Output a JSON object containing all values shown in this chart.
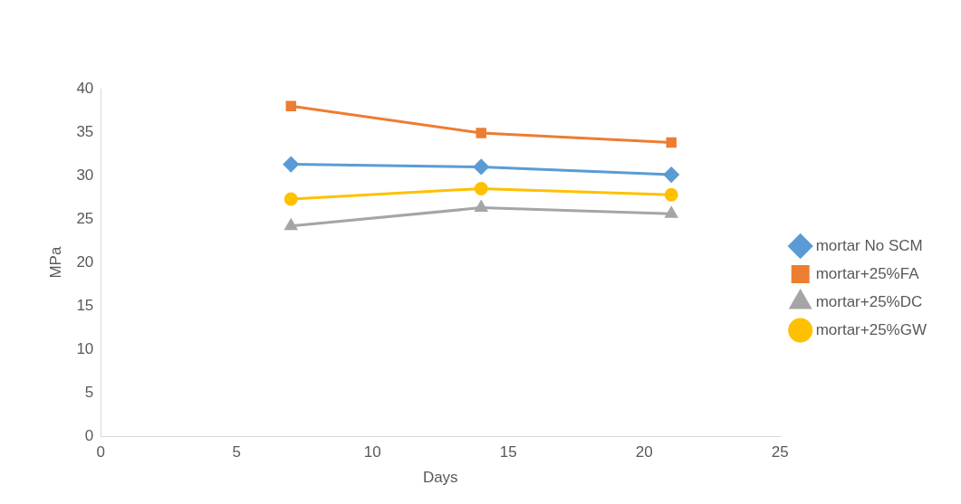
{
  "chart_data": {
    "type": "line",
    "xlabel": "Days",
    "ylabel": "MPa",
    "x": [
      7,
      14,
      21
    ],
    "series": [
      {
        "name": "mortar No SCM",
        "color": "#5b9bd5",
        "marker": "diamond",
        "values": [
          31.3,
          31.0,
          30.1
        ]
      },
      {
        "name": "mortar+25%FA",
        "color": "#ed7d31",
        "marker": "square",
        "values": [
          38.0,
          34.9,
          33.8
        ]
      },
      {
        "name": "mortar+25%DC",
        "color": "#a5a5a5",
        "marker": "triangle",
        "values": [
          24.2,
          26.3,
          25.6
        ]
      },
      {
        "name": "mortar+25%GW",
        "color": "#ffc000",
        "marker": "circle",
        "values": [
          27.3,
          28.5,
          27.8
        ]
      }
    ],
    "xlim": [
      0,
      25
    ],
    "xticks": [
      0,
      5,
      10,
      15,
      20,
      25
    ],
    "ylim": [
      0,
      40
    ],
    "yticks": [
      0,
      5,
      10,
      15,
      20,
      25,
      30,
      35,
      40
    ],
    "grid": false,
    "legend": "right",
    "line_style": "solid"
  }
}
